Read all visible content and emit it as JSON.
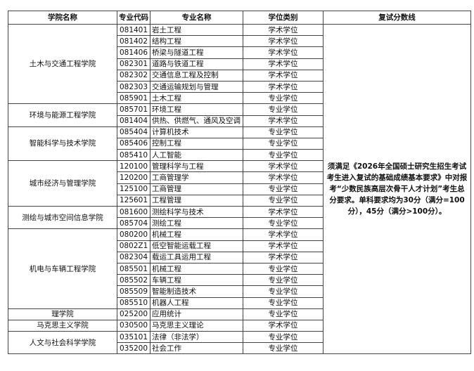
{
  "headers": [
    "学院名称",
    "专业代码",
    "专业名称",
    "学位类别",
    "复试分数线"
  ],
  "colleges": [
    {
      "name": "土木与交通工程学院",
      "programs": [
        {
          "code": "081401",
          "name": "岩土工程",
          "type": "学术学位"
        },
        {
          "code": "081402",
          "name": "结构工程",
          "type": "学术学位"
        },
        {
          "code": "081406",
          "name": "桥梁与隧道工程",
          "type": "学术学位"
        },
        {
          "code": "082301",
          "name": "道路与铁道工程",
          "type": "学术学位"
        },
        {
          "code": "082302",
          "name": "交通信息工程及控制",
          "type": "学术学位"
        },
        {
          "code": "082303",
          "name": "交通运输规划与管理",
          "type": "学术学位"
        },
        {
          "code": "085901",
          "name": "土木工程",
          "type": "专业学位"
        }
      ]
    },
    {
      "name": "环境与能源工程学院",
      "programs": [
        {
          "code": "085701",
          "name": "环境工程",
          "type": "专业学位"
        },
        {
          "code": "081404",
          "name": "供热、供燃气、通风及空调",
          "type": "学术学位"
        }
      ]
    },
    {
      "name": "智能科学与技术学院",
      "programs": [
        {
          "code": "085404",
          "name": "计算机技术",
          "type": "专业学位"
        },
        {
          "code": "085406",
          "name": "控制工程",
          "type": "专业学位"
        },
        {
          "code": "085410",
          "name": "人工智能",
          "type": "专业学位"
        }
      ]
    },
    {
      "name": "城市经济与管理学院",
      "programs": [
        {
          "code": "120100",
          "name": "管理科学与工程",
          "type": "学术学位"
        },
        {
          "code": "120200",
          "name": "工商管理学",
          "type": "学术学位"
        },
        {
          "code": "125100",
          "name": "工商管理",
          "type": "专业学位"
        },
        {
          "code": "125601",
          "name": "工程管理",
          "type": "专业学位"
        }
      ]
    },
    {
      "name": "测绘与城市空间信息学院",
      "programs": [
        {
          "code": "081600",
          "name": "测绘科学与技术",
          "type": "学术学位"
        },
        {
          "code": "085704",
          "name": "测绘工程",
          "type": "专业学位"
        }
      ]
    },
    {
      "name": "机电与车辆工程学院",
      "programs": [
        {
          "code": "080200",
          "name": "机械工程",
          "type": "学术学位"
        },
        {
          "code": "0802Z1",
          "name": "低空智能运载工程",
          "type": "学术学位"
        },
        {
          "code": "082304",
          "name": "载运工具运用工程",
          "type": "学术学位"
        },
        {
          "code": "085501",
          "name": "机械工程",
          "type": "专业学位"
        },
        {
          "code": "085502",
          "name": "车辆工程",
          "type": "专业学位"
        },
        {
          "code": "085509",
          "name": "智能制造技术",
          "type": "专业学位"
        },
        {
          "code": "085510",
          "name": "机器人工程",
          "type": "专业学位"
        }
      ]
    },
    {
      "name": "理学院",
      "programs": [
        {
          "code": "025200",
          "name": "应用统计",
          "type": "专业学位"
        }
      ]
    },
    {
      "name": "马克思主义学院",
      "programs": [
        {
          "code": "030500",
          "name": "马克思主义理论",
          "type": "学术学位"
        }
      ]
    },
    {
      "name": "人文与社会科学学院",
      "programs": [
        {
          "code": "035101",
          "name": "法律（非法学）",
          "type": "专业学位"
        },
        {
          "code": "035200",
          "name": "社会工作",
          "type": "专业学位"
        }
      ]
    }
  ],
  "score_note": "须满足《2026年全国硕士研究生招生考试考生进入复试的基础成绩基本要求》中对报考“少数民族高层次骨干人才计划”考生总分要求。单科要求均为30分（满分=100分），45分（满分>100分）。"
}
